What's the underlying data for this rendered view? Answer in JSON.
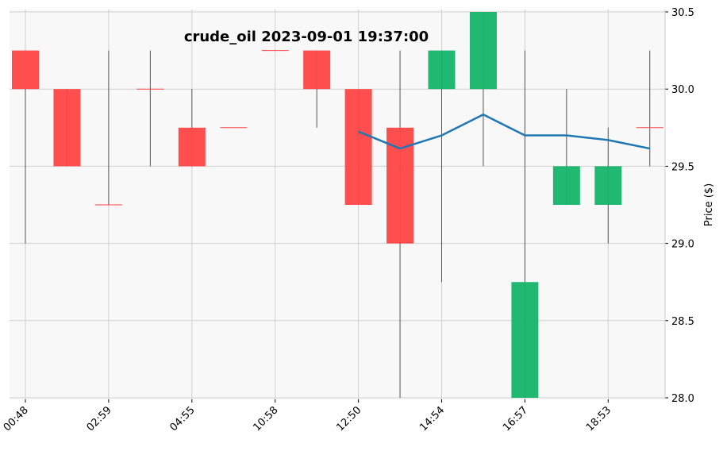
{
  "chart_data": {
    "type": "candlestick",
    "title": "crude_oil 2023-09-01 19:37:00",
    "xlabel": "",
    "ylabel": "Price ($)",
    "ylim": [
      28.0,
      30.5
    ],
    "yticks": [
      "28.0",
      "28.5",
      "29.0",
      "29.5",
      "30.0",
      "30.5"
    ],
    "grid": true,
    "xtick_labels": [
      {
        "index": 0,
        "label": "00:48"
      },
      {
        "index": 2,
        "label": "02:59"
      },
      {
        "index": 4,
        "label": "04:55"
      },
      {
        "index": 6,
        "label": "10:58"
      },
      {
        "index": 8,
        "label": "12:50"
      },
      {
        "index": 10,
        "label": "14:54"
      },
      {
        "index": 12,
        "label": "16:57"
      },
      {
        "index": 14,
        "label": "18:53"
      }
    ],
    "candles": [
      {
        "open": 30.25,
        "high": 30.25,
        "low": 29.0,
        "close": 30.0
      },
      {
        "open": 30.0,
        "high": 30.0,
        "low": 29.5,
        "close": 29.5
      },
      {
        "open": 29.25,
        "high": 30.25,
        "low": 29.25,
        "close": 29.25
      },
      {
        "open": 30.0,
        "high": 30.25,
        "low": 29.5,
        "close": 30.0
      },
      {
        "open": 29.75,
        "high": 30.0,
        "low": 29.5,
        "close": 29.5
      },
      {
        "open": 29.75,
        "high": 29.75,
        "low": 29.75,
        "close": 29.75
      },
      {
        "open": 30.25,
        "high": 30.25,
        "low": 30.25,
        "close": 30.25
      },
      {
        "open": 30.25,
        "high": 30.25,
        "low": 29.75,
        "close": 30.0
      },
      {
        "open": 30.0,
        "high": 30.0,
        "low": 29.25,
        "close": 29.25
      },
      {
        "open": 29.75,
        "high": 30.25,
        "low": 28.0,
        "close": 29.0
      },
      {
        "open": 30.0,
        "high": 30.25,
        "low": 28.75,
        "close": 30.25
      },
      {
        "open": 30.0,
        "high": 30.5,
        "low": 29.5,
        "close": 30.5
      },
      {
        "open": 28.0,
        "high": 30.25,
        "low": 28.0,
        "close": 28.75
      },
      {
        "open": 29.25,
        "high": 30.0,
        "low": 29.25,
        "close": 29.5
      },
      {
        "open": 29.25,
        "high": 29.75,
        "low": 29.0,
        "close": 29.5
      },
      {
        "open": 29.75,
        "high": 30.25,
        "low": 29.5,
        "close": 29.75
      }
    ],
    "moving_average": {
      "start_index": 8,
      "values": [
        29.725,
        29.615,
        29.7,
        29.835,
        29.7,
        29.7,
        29.67,
        29.615
      ]
    },
    "colors": {
      "up": "#15b56a",
      "down": "#ff4545",
      "wick": "#555555",
      "ma_line": "#1f77b4",
      "plot_bg": "#f8f8f8",
      "grid": "#d0d0d0"
    }
  }
}
